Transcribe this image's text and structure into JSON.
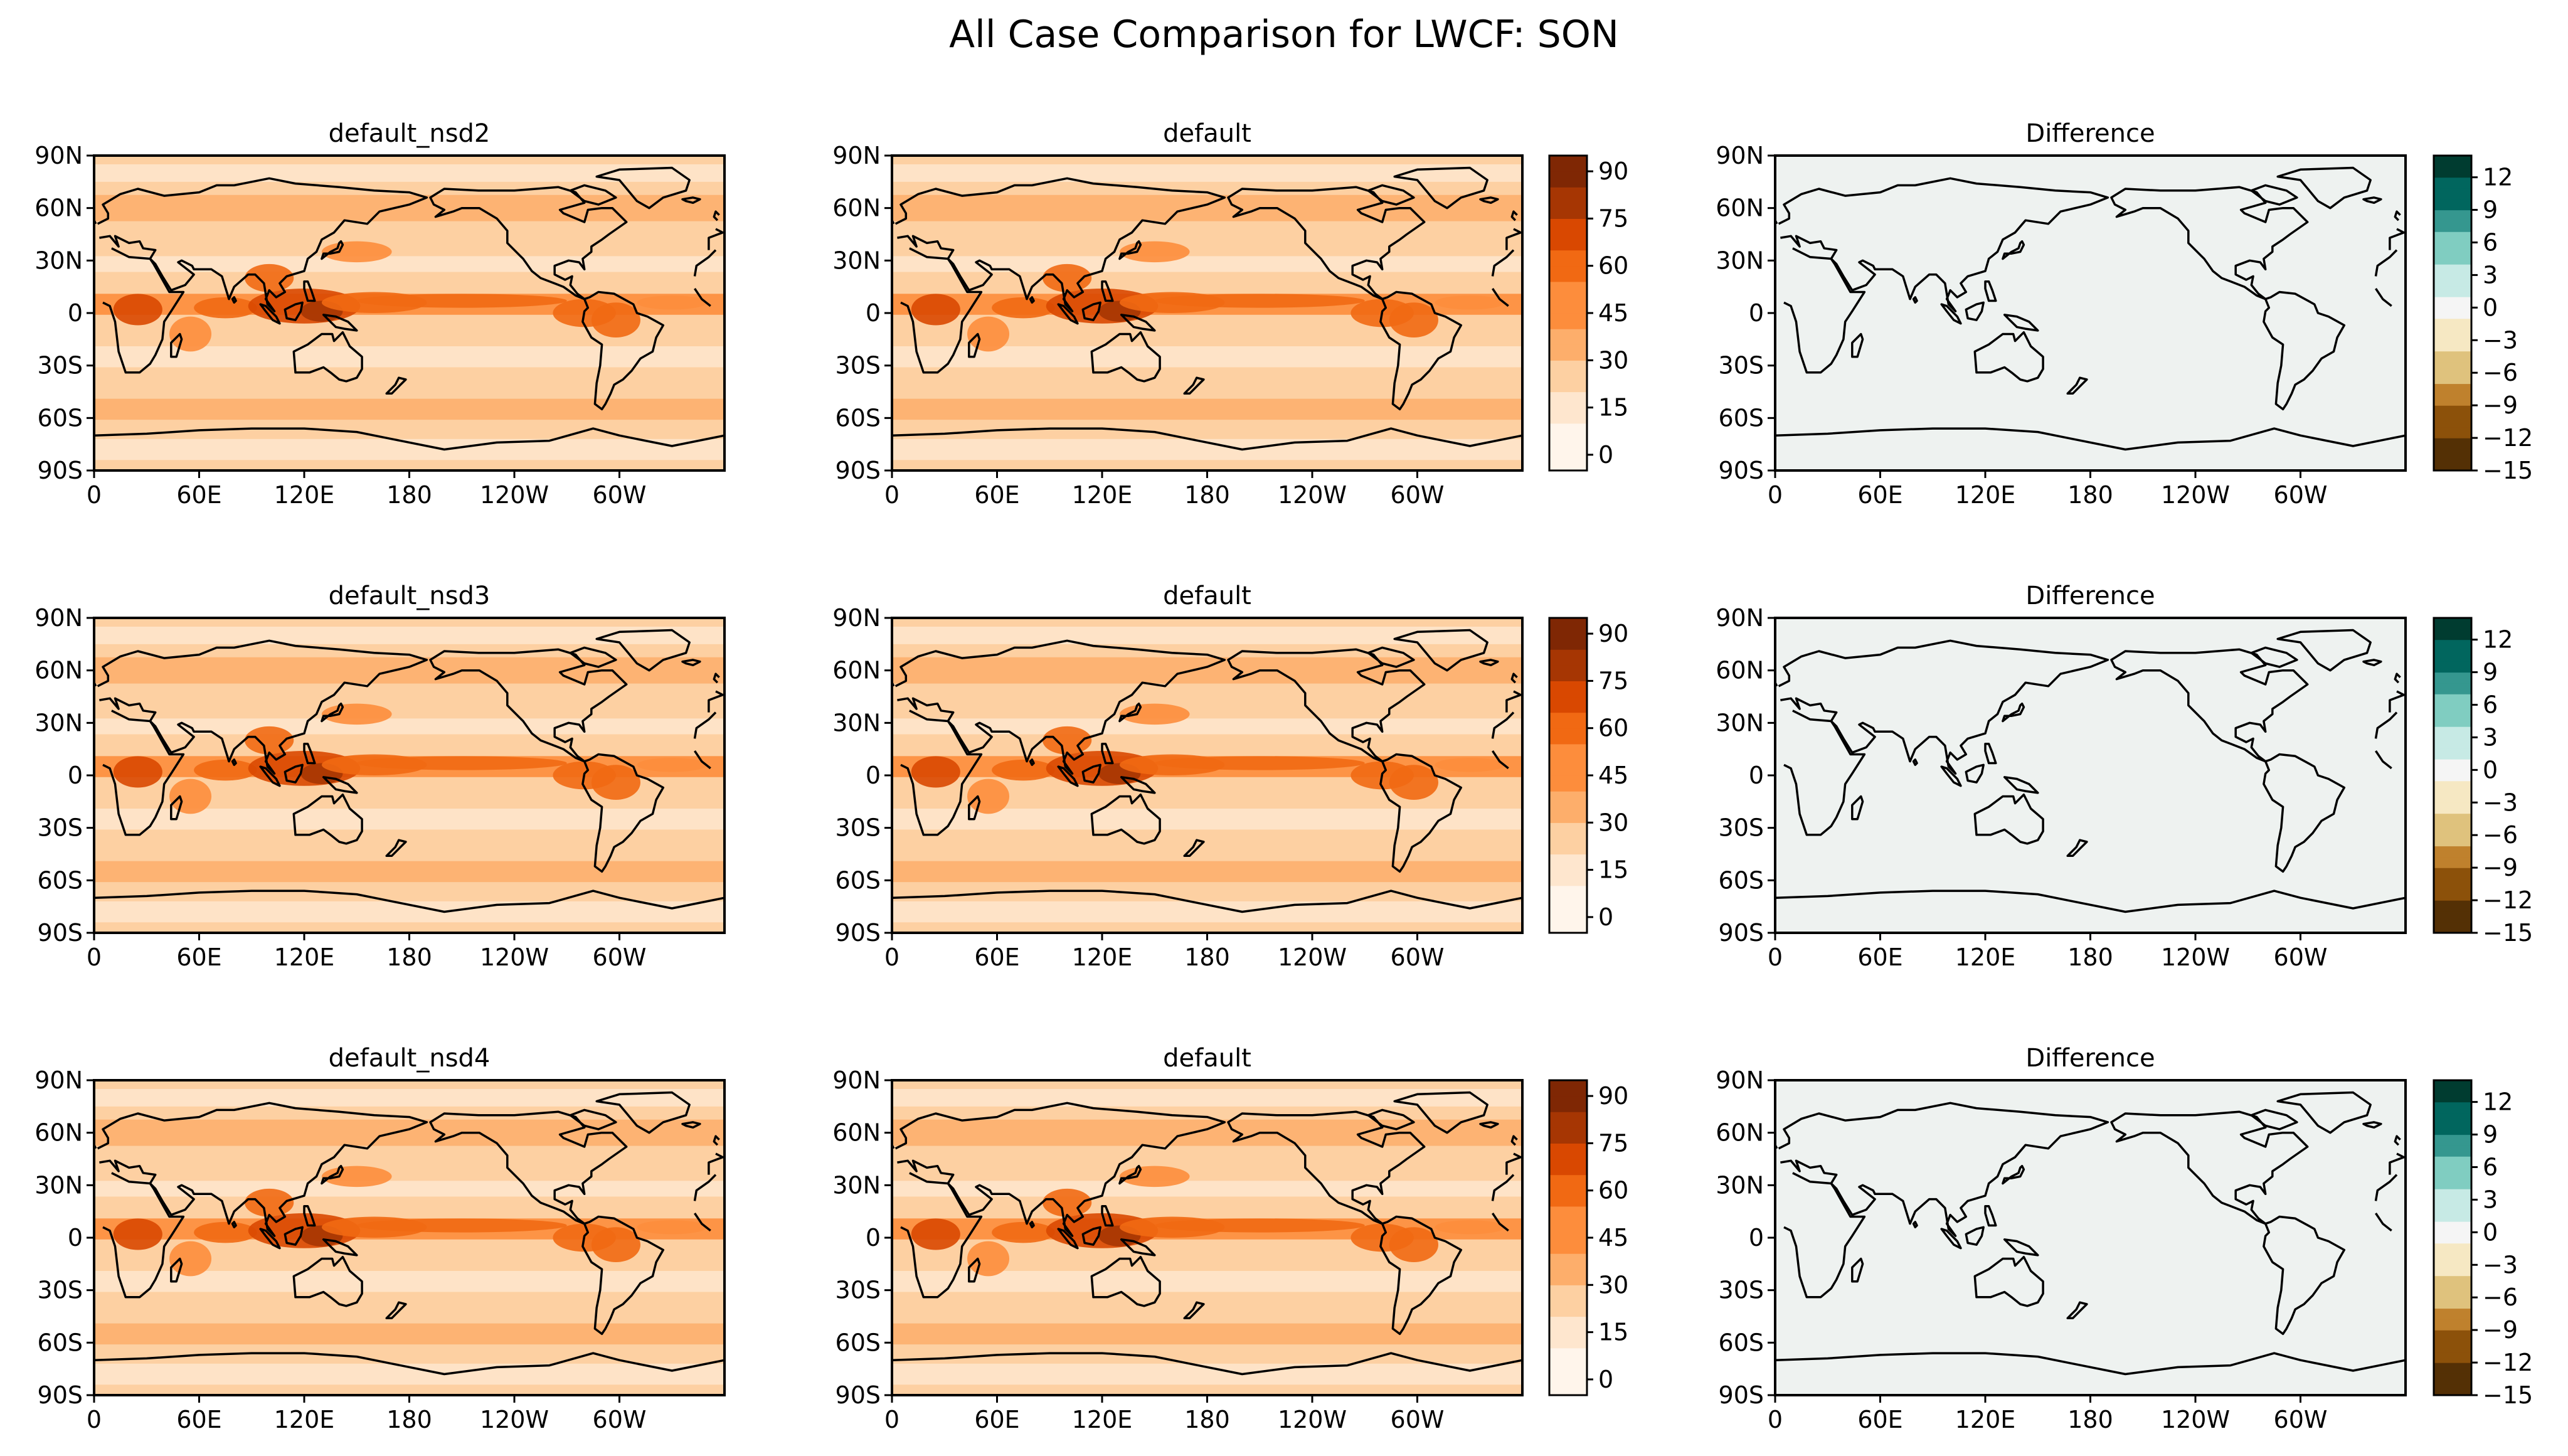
{
  "figure": {
    "title": "All Case Comparison for LWCF: SON"
  },
  "chart_data": {
    "type": "heatmap",
    "title": "All Case Comparison for LWCF: SON",
    "variable": "LWCF",
    "season": "SON",
    "xticks": [
      "0",
      "60E",
      "120E",
      "180",
      "120W",
      "60W"
    ],
    "yticks": [
      "90N",
      "60N",
      "30N",
      "0",
      "30S",
      "60S",
      "90S"
    ],
    "xlim": [
      0,
      360
    ],
    "ylim": [
      -90,
      90
    ],
    "field_colorbar": {
      "colormap": "Oranges",
      "range": [
        -5,
        95
      ],
      "ticks": [
        "90",
        "75",
        "60",
        "45",
        "30",
        "15",
        "0"
      ],
      "colors": [
        "#fff5eb",
        "#fee6ce",
        "#fdd0a2",
        "#fdae6b",
        "#fd8d3c",
        "#f16913",
        "#d94801",
        "#a63603",
        "#7f2704"
      ]
    },
    "diff_colorbar": {
      "colormap": "BrBG",
      "range": [
        -15,
        14
      ],
      "ticks": [
        "12",
        "9",
        "6",
        "3",
        "0",
        "−3",
        "−6",
        "−9",
        "−12",
        "−15"
      ],
      "colors": [
        "#543005",
        "#8c510a",
        "#bf812d",
        "#dfc27d",
        "#f6e8c3",
        "#f5f5f5",
        "#c7eae5",
        "#80cdc1",
        "#35978f",
        "#01665e",
        "#003c30"
      ]
    },
    "rows": [
      {
        "test_title": "default_nsd2",
        "ref_title": "default",
        "diff_title": "Difference",
        "diff_mean": 0
      },
      {
        "test_title": "default_nsd3",
        "ref_title": "default",
        "diff_title": "Difference",
        "diff_mean": 0
      },
      {
        "test_title": "default_nsd4",
        "ref_title": "default",
        "diff_title": "Difference",
        "diff_mean": 0
      }
    ]
  }
}
